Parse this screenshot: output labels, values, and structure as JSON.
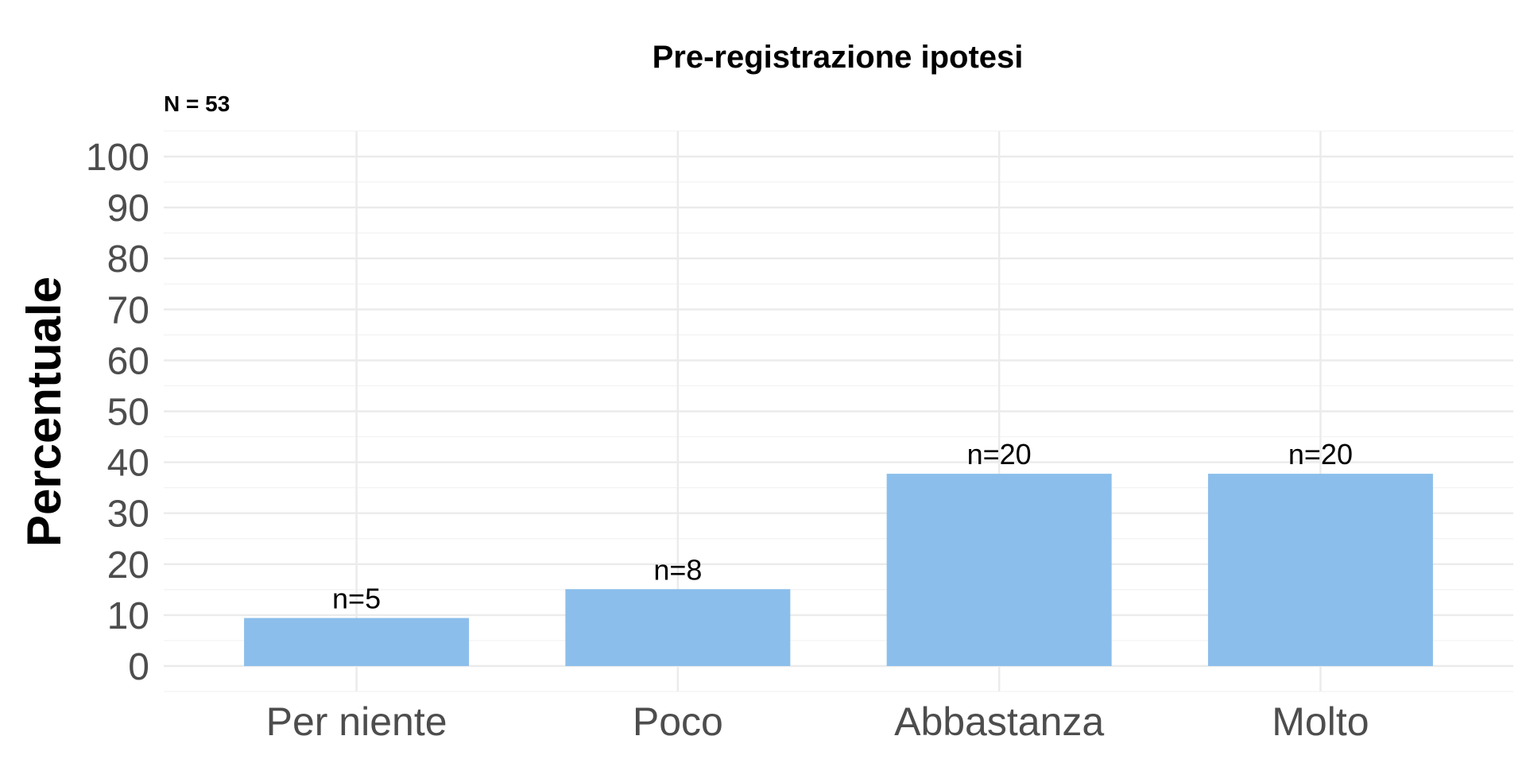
{
  "chart_data": {
    "type": "bar",
    "title": "Pre-registrazione ipotesi",
    "subtitle": "N = 53",
    "xlabel": "",
    "ylabel": "Percentuale",
    "categories": [
      "Per niente",
      "Poco",
      "Abbastanza",
      "Molto"
    ],
    "values": [
      9.43,
      15.09,
      37.74,
      37.74
    ],
    "data_labels": [
      "n=5",
      "n=8",
      "n=20",
      "n=20"
    ],
    "ylim": [
      0,
      100
    ],
    "yticks": [
      0,
      10,
      20,
      30,
      40,
      50,
      60,
      70,
      80,
      90,
      100
    ],
    "bar_color": "#8BBEEB",
    "grid": true,
    "legend": "none"
  }
}
